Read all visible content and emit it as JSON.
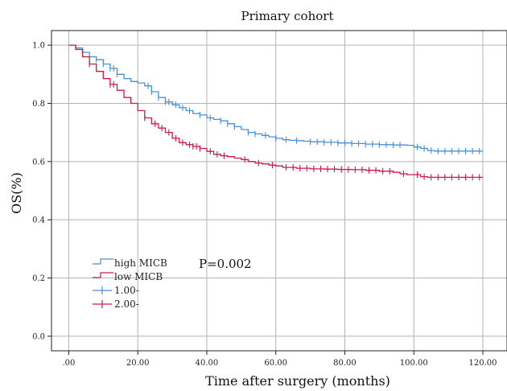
{
  "chart_data": {
    "type": "line",
    "title": "Primary cohort",
    "xlabel": "Time after surgery (months)",
    "ylabel": "OS(%)",
    "xlim": [
      -5,
      127
    ],
    "ylim": [
      -0.05,
      1.05
    ],
    "x_ticks": [
      0,
      20,
      40,
      60,
      80,
      100,
      120
    ],
    "x_tick_labels": [
      ".00",
      "20.00",
      "40.00",
      "60.00",
      "80.00",
      "100.00",
      "120.00"
    ],
    "y_ticks": [
      0,
      0.2,
      0.4,
      0.6,
      0.8,
      1.0
    ],
    "y_tick_labels": [
      "0.0",
      "0.2",
      "0.4",
      "0.6",
      "0.8",
      "1.0"
    ],
    "grid": true,
    "legend_position": "bottom-left",
    "annotation": "P=0.002",
    "series": [
      {
        "name": "high MICB",
        "censor_label": "1.00-",
        "color": "#4a90d9",
        "x": [
          0,
          2,
          4,
          6,
          8,
          10,
          12,
          14,
          16,
          18,
          20,
          22,
          24,
          26,
          28,
          30,
          32,
          34,
          36,
          38,
          40,
          42,
          44,
          46,
          48,
          50,
          52,
          54,
          56,
          58,
          60,
          62,
          64,
          66,
          68,
          70,
          74,
          78,
          82,
          86,
          90,
          94,
          98,
          100,
          102,
          104,
          106,
          110,
          114,
          120
        ],
        "y": [
          1.0,
          0.99,
          0.975,
          0.96,
          0.95,
          0.935,
          0.92,
          0.9,
          0.885,
          0.875,
          0.87,
          0.86,
          0.84,
          0.82,
          0.805,
          0.795,
          0.785,
          0.775,
          0.765,
          0.76,
          0.75,
          0.745,
          0.74,
          0.73,
          0.72,
          0.71,
          0.7,
          0.695,
          0.69,
          0.685,
          0.68,
          0.675,
          0.673,
          0.672,
          0.67,
          0.668,
          0.666,
          0.664,
          0.662,
          0.66,
          0.658,
          0.657,
          0.656,
          0.65,
          0.645,
          0.638,
          0.636,
          0.636,
          0.636,
          0.636
        ],
        "censor_x": [
          8,
          10,
          12,
          13,
          14,
          23,
          24,
          26,
          28,
          29,
          31,
          33,
          35,
          38,
          41,
          44,
          46,
          48,
          52,
          54,
          57,
          60,
          63,
          66,
          70,
          72,
          74,
          76,
          78,
          80,
          82,
          84,
          86,
          88,
          90,
          92,
          94,
          96,
          101,
          103,
          105,
          107,
          109,
          111,
          113,
          115,
          117,
          119
        ]
      },
      {
        "name": "low MICB",
        "censor_label": "2.00-",
        "color": "#cc1a4a",
        "x": [
          0,
          2,
          4,
          6,
          8,
          10,
          12,
          14,
          16,
          18,
          20,
          22,
          24,
          26,
          28,
          30,
          32,
          34,
          36,
          38,
          40,
          42,
          44,
          46,
          48,
          50,
          52,
          54,
          56,
          58,
          60,
          62,
          66,
          70,
          74,
          78,
          82,
          86,
          90,
          94,
          96,
          98,
          100,
          102,
          104,
          108,
          112,
          120
        ],
        "y": [
          1.0,
          0.985,
          0.96,
          0.935,
          0.91,
          0.885,
          0.865,
          0.845,
          0.82,
          0.8,
          0.775,
          0.75,
          0.73,
          0.715,
          0.7,
          0.68,
          0.665,
          0.658,
          0.652,
          0.645,
          0.635,
          0.625,
          0.62,
          0.617,
          0.612,
          0.607,
          0.6,
          0.595,
          0.592,
          0.588,
          0.585,
          0.58,
          0.577,
          0.575,
          0.574,
          0.573,
          0.572,
          0.57,
          0.567,
          0.563,
          0.558,
          0.555,
          0.555,
          0.548,
          0.546,
          0.546,
          0.546,
          0.546
        ],
        "censor_x": [
          6,
          12,
          13,
          22,
          25,
          27,
          29,
          31,
          33,
          35,
          36,
          37,
          38,
          41,
          43,
          45,
          51,
          55,
          59,
          63,
          65,
          67,
          69,
          71,
          73,
          75,
          77,
          79,
          81,
          83,
          85,
          87,
          89,
          91,
          93,
          97,
          101,
          103,
          105,
          107,
          109,
          111,
          113,
          115,
          117,
          119
        ]
      }
    ]
  }
}
